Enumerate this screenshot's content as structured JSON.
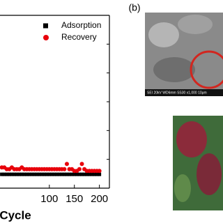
{
  "chart_data": {
    "type": "scatter",
    "x_label": "Cycle",
    "x": [
      5,
      10,
      15,
      20,
      25,
      30,
      35,
      40,
      45,
      50,
      55,
      60,
      65,
      70,
      75,
      80,
      85,
      90,
      95,
      100,
      105,
      110,
      115,
      120,
      125,
      130,
      135,
      140,
      145,
      150,
      155,
      160,
      165,
      170,
      175,
      180,
      185,
      190,
      195,
      200
    ],
    "series": [
      {
        "name": "Adsorption",
        "color": "#000000",
        "marker": "square",
        "values": [
          8,
          8,
          8,
          8,
          8,
          8,
          8,
          8,
          8,
          8,
          8,
          8,
          8,
          8,
          8,
          8,
          8,
          8,
          8,
          8,
          8,
          8,
          8,
          8,
          8,
          8,
          8,
          8,
          8,
          8,
          8,
          8,
          8,
          8,
          8,
          8,
          8,
          8,
          8,
          8
        ]
      },
      {
        "name": "Recovery",
        "color": "#e8000b",
        "marker": "circle",
        "values": [
          12,
          12,
          11,
          11,
          12,
          11,
          11,
          11,
          12,
          11,
          11,
          11,
          11,
          11,
          11,
          11,
          11,
          11,
          11,
          11,
          11,
          11,
          11,
          11,
          11,
          11,
          14,
          11,
          11,
          10,
          10,
          11,
          14,
          11,
          10,
          10,
          10,
          10,
          10,
          10
        ]
      }
    ],
    "xlim": [
      0,
      220
    ],
    "xticks": [
      100,
      150,
      200
    ],
    "ylim": [
      0,
      100
    ],
    "legend": "upper-right"
  },
  "panel_b": {
    "label": "(b)",
    "sem_caption": "SEI 20kV WD6mm SS30 x1,000 10μm",
    "magnification": "x1000"
  }
}
